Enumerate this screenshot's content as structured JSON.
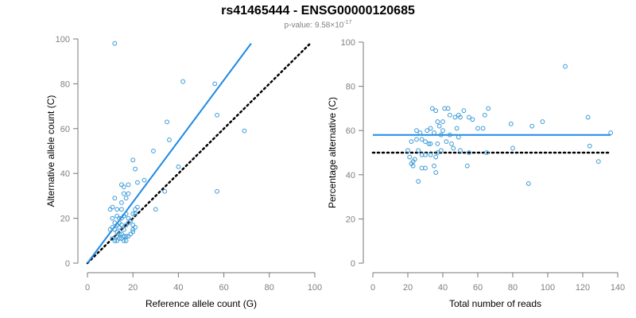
{
  "figure": {
    "title": "rs41465444 - ENSG00000120685",
    "subtitle_prefix": "p-value: 9.58×10",
    "subtitle_exponent": "-17"
  },
  "colors": {
    "points": "#3a9ad9",
    "fit_line": "#1e88e5",
    "reference_line": "#000000",
    "axis": "#777777"
  },
  "chart_data": [
    {
      "type": "scatter",
      "title": "",
      "xlabel": "Reference allele count (G)",
      "ylabel": "Alternative allele count (C)",
      "xlim": [
        0,
        100
      ],
      "ylim": [
        0,
        100
      ],
      "xticks": [
        0,
        20,
        40,
        60,
        80,
        100
      ],
      "yticks": [
        0,
        20,
        40,
        60,
        80,
        100
      ],
      "grid": false,
      "fit_line": {
        "x": [
          0,
          72
        ],
        "y": [
          0,
          98
        ]
      },
      "reference_line": {
        "x": [
          0,
          98
        ],
        "y": [
          0,
          98
        ]
      },
      "points": [
        [
          12,
          98
        ],
        [
          42,
          81
        ],
        [
          56,
          80
        ],
        [
          35,
          63
        ],
        [
          57,
          66
        ],
        [
          69,
          59
        ],
        [
          36,
          55
        ],
        [
          29,
          50
        ],
        [
          40,
          43
        ],
        [
          21,
          42
        ],
        [
          20,
          46
        ],
        [
          25,
          37
        ],
        [
          22,
          36
        ],
        [
          18,
          35
        ],
        [
          15,
          35
        ],
        [
          16,
          34
        ],
        [
          16,
          31
        ],
        [
          18,
          31
        ],
        [
          17,
          29
        ],
        [
          15,
          27
        ],
        [
          10,
          24
        ],
        [
          11,
          25
        ],
        [
          13,
          24
        ],
        [
          15,
          24
        ],
        [
          21,
          24
        ],
        [
          22,
          25
        ],
        [
          20,
          22
        ],
        [
          30,
          24
        ],
        [
          34,
          32
        ],
        [
          57,
          32
        ],
        [
          12,
          29
        ],
        [
          13,
          21
        ],
        [
          14,
          20
        ],
        [
          16,
          21
        ],
        [
          17,
          22
        ],
        [
          18,
          20
        ],
        [
          12,
          18
        ],
        [
          14,
          18
        ],
        [
          15,
          17
        ],
        [
          17,
          17
        ],
        [
          18,
          18
        ],
        [
          20,
          17
        ],
        [
          20,
          15
        ],
        [
          21,
          16
        ],
        [
          20,
          14
        ],
        [
          11,
          16
        ],
        [
          12,
          15
        ],
        [
          10,
          15
        ],
        [
          13,
          14
        ],
        [
          14,
          13
        ],
        [
          15,
          13
        ],
        [
          16,
          12
        ],
        [
          17,
          12
        ],
        [
          18,
          12
        ],
        [
          13,
          12
        ],
        [
          14,
          11
        ],
        [
          15,
          11
        ],
        [
          16,
          10
        ],
        [
          11,
          11
        ],
        [
          12,
          10
        ],
        [
          13,
          10
        ],
        [
          17,
          10
        ],
        [
          15,
          20
        ],
        [
          19,
          19
        ],
        [
          14,
          16
        ],
        [
          16,
          15
        ],
        [
          19,
          13
        ],
        [
          11,
          20
        ],
        [
          13,
          17
        ],
        [
          21,
          22
        ]
      ]
    },
    {
      "type": "scatter",
      "title": "",
      "xlabel": "Total number of reads",
      "ylabel": "Percentage alternative (C)",
      "xlim": [
        0,
        140
      ],
      "ylim": [
        0,
        100
      ],
      "xticks": [
        0,
        20,
        40,
        60,
        80,
        100,
        120,
        140
      ],
      "yticks": [
        0,
        20,
        40,
        60,
        80,
        100
      ],
      "grid": false,
      "fit_line": {
        "x": [
          0,
          136
        ],
        "y": [
          58,
          58
        ]
      },
      "reference_line": {
        "x": [
          0,
          136
        ],
        "y": [
          50,
          50
        ]
      },
      "points": [
        [
          110,
          89
        ],
        [
          34,
          70
        ],
        [
          41,
          70
        ],
        [
          36,
          69
        ],
        [
          43,
          70
        ],
        [
          44,
          67
        ],
        [
          49,
          67
        ],
        [
          52,
          69
        ],
        [
          57,
          65
        ],
        [
          64,
          67
        ],
        [
          66,
          70
        ],
        [
          37,
          64
        ],
        [
          40,
          64
        ],
        [
          38,
          62
        ],
        [
          33,
          61
        ],
        [
          47,
          66
        ],
        [
          50,
          66
        ],
        [
          55,
          66
        ],
        [
          60,
          61
        ],
        [
          48,
          61
        ],
        [
          40,
          60
        ],
        [
          27,
          59
        ],
        [
          31,
          60
        ],
        [
          35,
          59
        ],
        [
          39,
          58
        ],
        [
          44,
          58
        ],
        [
          49,
          57
        ],
        [
          25,
          56
        ],
        [
          28,
          56
        ],
        [
          22,
          55
        ],
        [
          30,
          55
        ],
        [
          32,
          54
        ],
        [
          33,
          54
        ],
        [
          37,
          54
        ],
        [
          42,
          55
        ],
        [
          45,
          54
        ],
        [
          46,
          52
        ],
        [
          50,
          51
        ],
        [
          55,
          50
        ],
        [
          65,
          50
        ],
        [
          20,
          51
        ],
        [
          26,
          51
        ],
        [
          28,
          49
        ],
        [
          30,
          49
        ],
        [
          33,
          49
        ],
        [
          36,
          48
        ],
        [
          37,
          50
        ],
        [
          39,
          51
        ],
        [
          21,
          48
        ],
        [
          23,
          46
        ],
        [
          24,
          47
        ],
        [
          22,
          45
        ],
        [
          23,
          44
        ],
        [
          28,
          43
        ],
        [
          30,
          43
        ],
        [
          35,
          44
        ],
        [
          36,
          41
        ],
        [
          26,
          37
        ],
        [
          79,
          63
        ],
        [
          80,
          52
        ],
        [
          91,
          62
        ],
        [
          97,
          64
        ],
        [
          89,
          36
        ],
        [
          123,
          66
        ],
        [
          124,
          53
        ],
        [
          129,
          46
        ],
        [
          136,
          59
        ],
        [
          54,
          44
        ],
        [
          25,
          60
        ],
        [
          63,
          61
        ]
      ]
    }
  ]
}
